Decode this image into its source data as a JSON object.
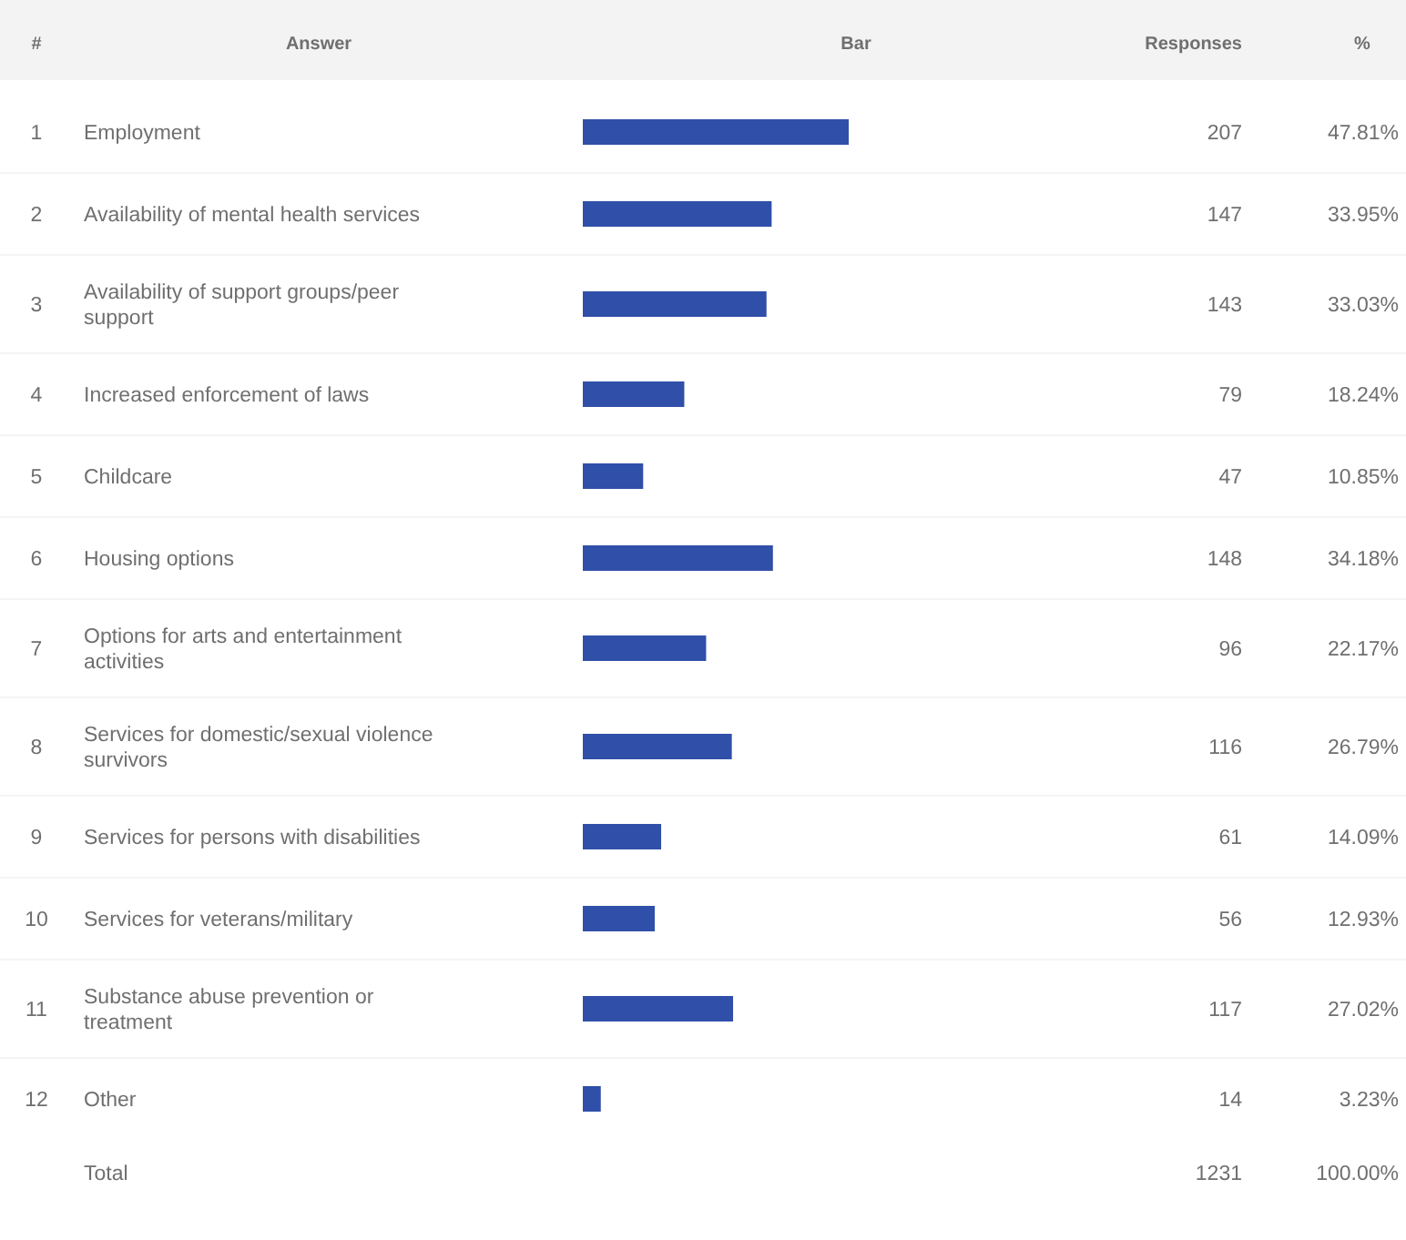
{
  "chart_data": {
    "type": "bar",
    "orientation": "horizontal",
    "data_labels": true,
    "categories": [
      "Employment",
      "Availability of mental health services",
      "Availability of support groups/peer support",
      "Increased enforcement of laws",
      "Childcare",
      "Housing options",
      "Options for arts and entertainment activities",
      "Services for domestic/sexual violence survivors",
      "Services for persons with disabilities",
      "Services for veterans/military",
      "Substance abuse prevention or treatment",
      "Other"
    ],
    "series": [
      {
        "color": "#2f4fa8",
        "values": [
          207,
          147,
          143,
          79,
          47,
          148,
          96,
          116,
          61,
          56,
          117,
          14
        ]
      }
    ],
    "annotations": [
      "#",
      "Answer",
      "Bar",
      "Responses",
      "%",
      "1",
      "2",
      "3",
      "4",
      "5",
      "6",
      "7",
      "8",
      "9",
      "10",
      "11",
      "12",
      "47.81%",
      "33.95%",
      "33.03%",
      "18.24%",
      "10.85%",
      "34.18%",
      "22.17%",
      "26.79%",
      "14.09%",
      "12.93%",
      "27.02%",
      "3.23%",
      "Total",
      "1231",
      "100.00%"
    ]
  }
}
